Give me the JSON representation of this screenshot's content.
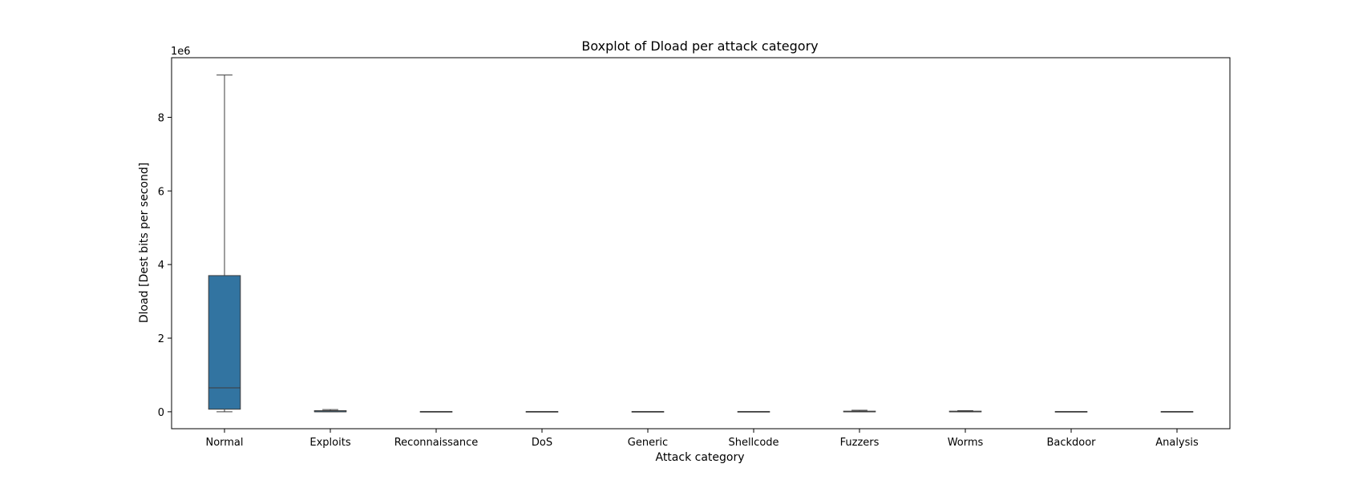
{
  "chart_data": {
    "type": "boxplot",
    "title": "Boxplot of Dload per attack category",
    "xlabel": "Attack category",
    "ylabel": "Dload [Dest bits per second]",
    "offset_label": "1e6",
    "y_scale_multiplier": 1000000,
    "ylim": [
      -460000,
      9620000
    ],
    "yticks": [
      0,
      2000000,
      4000000,
      6000000,
      8000000
    ],
    "ytick_labels": [
      "0",
      "2",
      "4",
      "6",
      "8"
    ],
    "grid": false,
    "categories": [
      "Normal",
      "Exploits",
      "Reconnaissance",
      "DoS",
      "Generic",
      "Shellcode",
      "Fuzzers",
      "Worms",
      "Backdoor",
      "Analysis"
    ],
    "boxes": [
      {
        "category": "Normal",
        "whisker_low": 0,
        "q1": 70000,
        "median": 650000,
        "q3": 3700000,
        "whisker_high": 9150000
      },
      {
        "category": "Exploits",
        "whisker_low": 0,
        "q1": 0,
        "median": 0,
        "q3": 30000,
        "whisker_high": 60000
      },
      {
        "category": "Reconnaissance",
        "whisker_low": 0,
        "q1": 0,
        "median": 0,
        "q3": 0,
        "whisker_high": 0
      },
      {
        "category": "DoS",
        "whisker_low": 0,
        "q1": 0,
        "median": 0,
        "q3": 0,
        "whisker_high": 0
      },
      {
        "category": "Generic",
        "whisker_low": 0,
        "q1": 0,
        "median": 0,
        "q3": 0,
        "whisker_high": 0
      },
      {
        "category": "Shellcode",
        "whisker_low": 0,
        "q1": 0,
        "median": 0,
        "q3": 0,
        "whisker_high": 0
      },
      {
        "category": "Fuzzers",
        "whisker_low": 0,
        "q1": 0,
        "median": 0,
        "q3": 15000,
        "whisker_high": 40000
      },
      {
        "category": "Worms",
        "whisker_low": 0,
        "q1": 0,
        "median": 0,
        "q3": 15000,
        "whisker_high": 30000
      },
      {
        "category": "Backdoor",
        "whisker_low": 0,
        "q1": 0,
        "median": 0,
        "q3": 0,
        "whisker_high": 0
      },
      {
        "category": "Analysis",
        "whisker_low": 0,
        "q1": 0,
        "median": 0,
        "q3": 0,
        "whisker_high": 0
      }
    ],
    "colors": {
      "box_fill": "#3274a1",
      "line": "#3d3d3d",
      "axis": "#000000"
    }
  }
}
